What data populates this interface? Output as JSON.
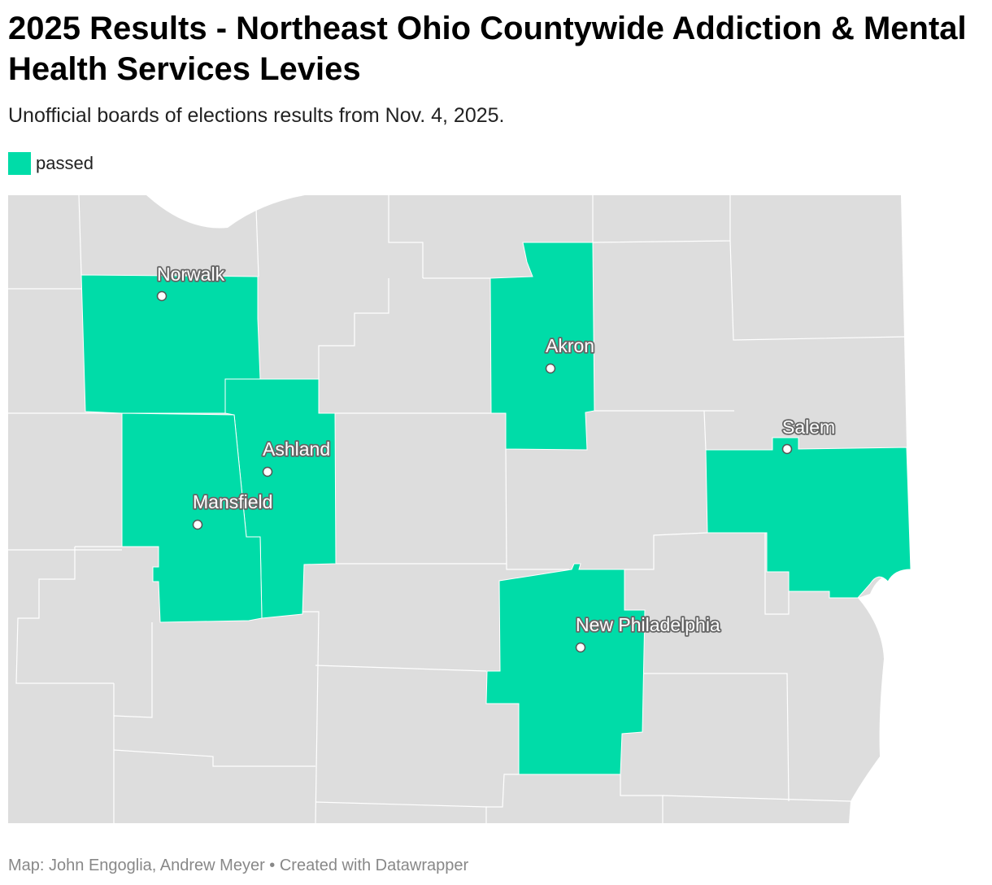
{
  "header": {
    "title": "2025 Results - Northeast Ohio Countywide Addiction & Mental Health Services Levies",
    "subtitle": "Unofficial boards of elections results from Nov. 4, 2025."
  },
  "legend": {
    "items": [
      {
        "label": "passed",
        "color": "#00dca8"
      }
    ]
  },
  "map": {
    "base_color": "#dddddd",
    "passed_color": "#00dca8",
    "border_color": "#ffffff",
    "cities": [
      "Norwalk",
      "Akron",
      "Ashland",
      "Mansfield",
      "Salem",
      "New Philadelphia"
    ]
  },
  "footer": {
    "credit": "Map: John Engoglia, Andrew Meyer • Created with Datawrapper"
  }
}
